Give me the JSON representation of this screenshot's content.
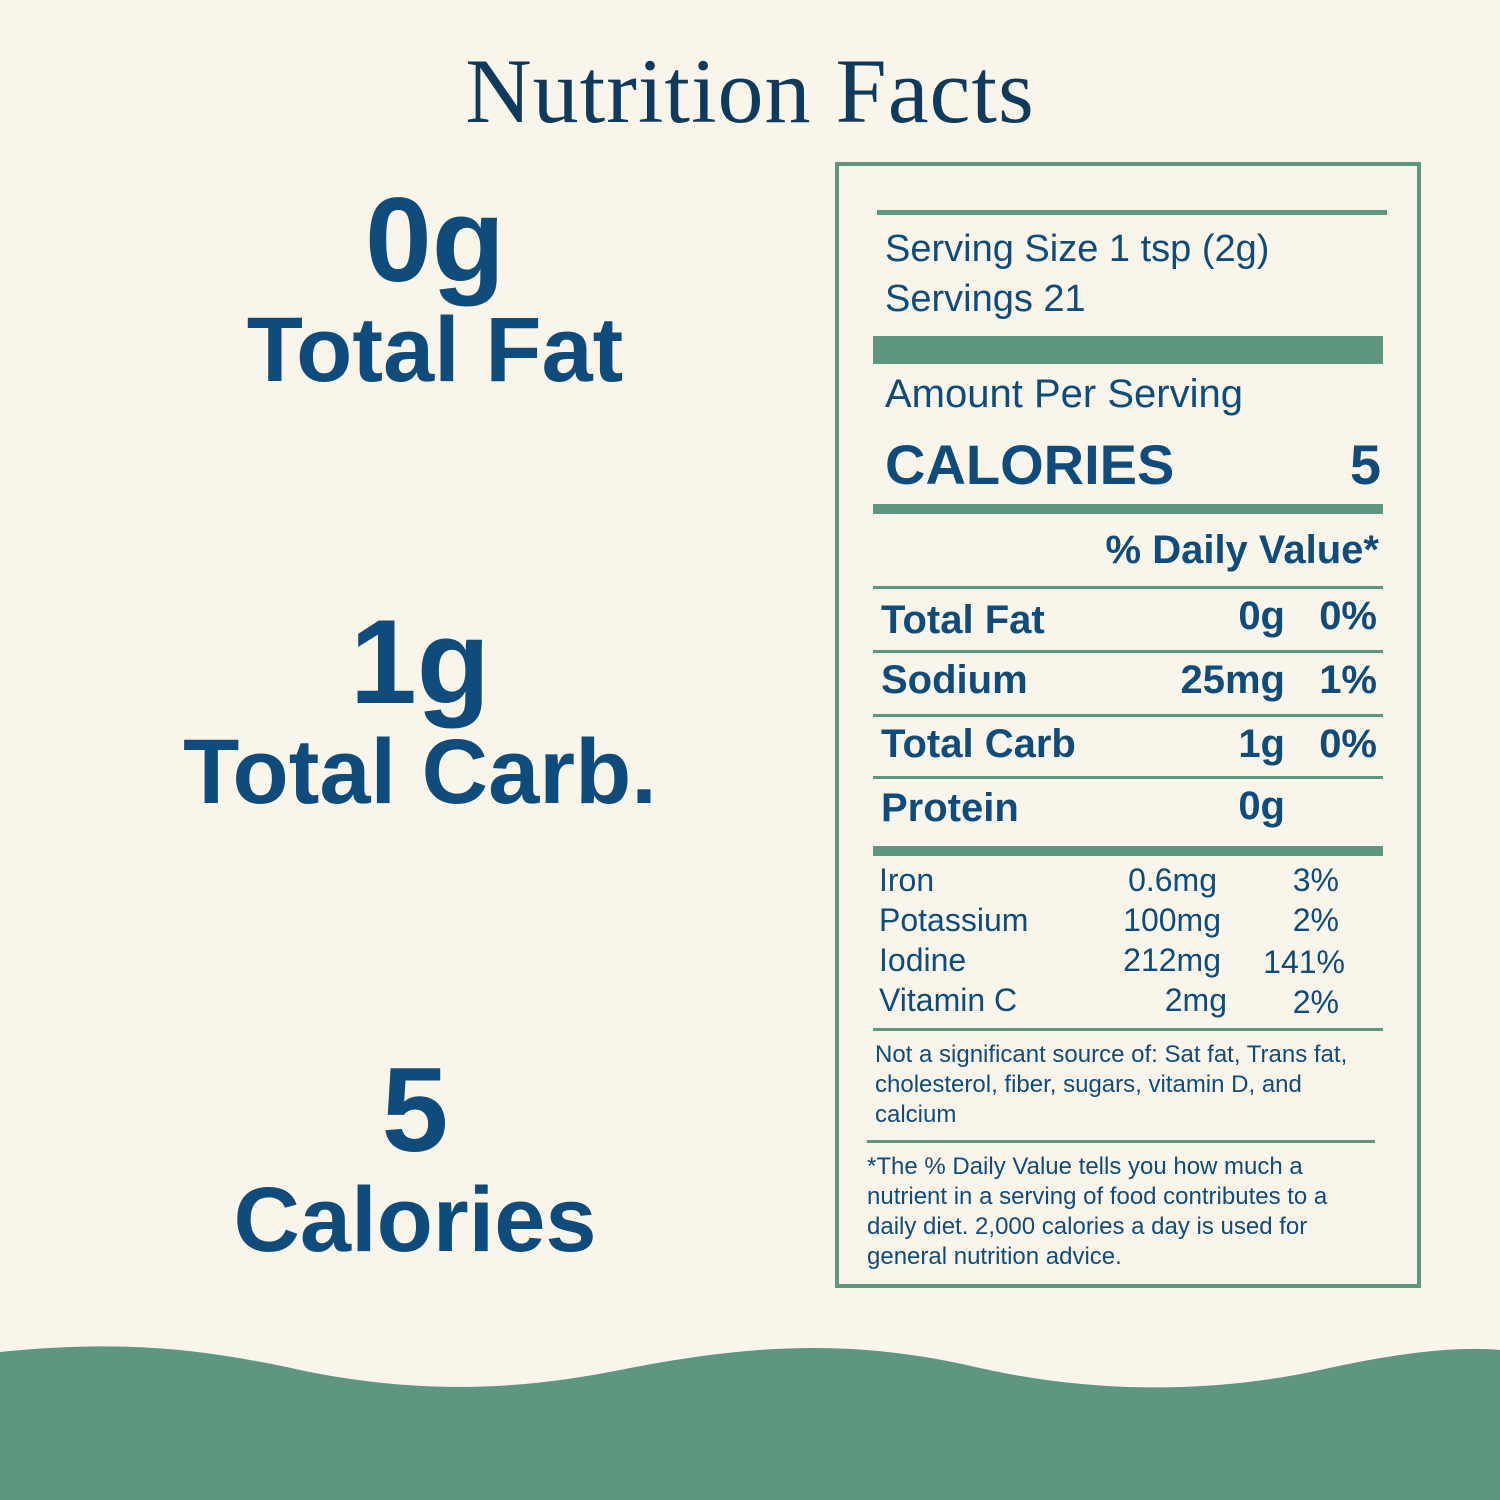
{
  "title": "Nutrition Facts",
  "highlights": [
    {
      "value": "0g",
      "label": "Total Fat"
    },
    {
      "value": "1g",
      "label": "Total Carb."
    },
    {
      "value": "5",
      "label": "Calories"
    }
  ],
  "label": {
    "serving_size": "Serving Size 1 tsp (2g)",
    "servings": "Servings 21",
    "amount_per_serving": "Amount Per Serving",
    "calories_label": "CALORIES",
    "calories_value": "5",
    "daily_value_header": "% Daily Value*",
    "nutrients": [
      {
        "name": "Total Fat",
        "amount": "0g",
        "dv": "0%"
      },
      {
        "name": "Sodium",
        "amount": "25mg",
        "dv": "1%"
      },
      {
        "name": "Total Carb",
        "amount": "1g",
        "dv": "0%"
      },
      {
        "name": "Protein",
        "amount": "0g",
        "dv": ""
      }
    ],
    "minerals": [
      {
        "name": "Iron",
        "amount": "0.6mg",
        "dv": "3%"
      },
      {
        "name": "Potassium",
        "amount": "100mg",
        "dv": "2%"
      },
      {
        "name": "Iodine",
        "amount": "212mg",
        "dv": "141%"
      },
      {
        "name": "Vitamin C",
        "amount": "2mg",
        "dv": "2%"
      }
    ],
    "not_significant": "Not a significant source of: Sat fat, Trans fat, cholesterol, fiber, sugars, vitamin D, and calcium",
    "footnote": "*The % Daily Value tells you how much a nutrient in a serving of food contributes to a daily diet. 2,000 calories a day is used for general nutrition advice."
  },
  "colors": {
    "background": "#faf5eb",
    "accent_green": "#5f9680",
    "text_blue": "#0f4c7c",
    "title_navy": "#0f3a5c"
  }
}
